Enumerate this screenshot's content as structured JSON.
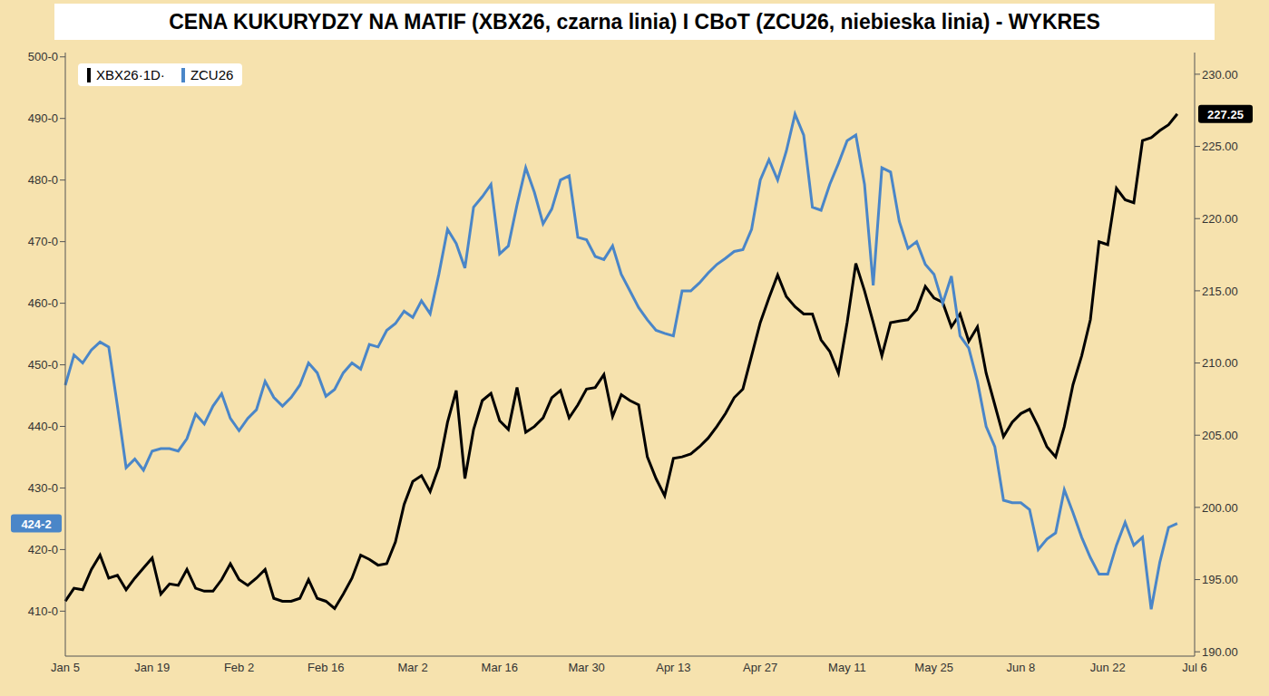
{
  "chart_data": {
    "type": "line",
    "title": "CENA KUKURYDZY NA MATIF (XBX26, czarna linia) I CBoT (ZCU26, niebieska linia) - WYKRES",
    "categories": [
      "Jan 5",
      null,
      null,
      null,
      null,
      null,
      null,
      null,
      null,
      null,
      "Jan 19",
      null,
      null,
      null,
      null,
      null,
      null,
      null,
      null,
      null,
      "Feb 2",
      null,
      null,
      null,
      null,
      null,
      null,
      null,
      null,
      null,
      "Feb 16",
      null,
      null,
      null,
      null,
      null,
      null,
      null,
      null,
      null,
      "Mar 2",
      null,
      null,
      null,
      null,
      null,
      null,
      null,
      null,
      null,
      "Mar 16",
      null,
      null,
      null,
      null,
      null,
      null,
      null,
      null,
      null,
      "Mar 30",
      null,
      null,
      null,
      null,
      null,
      null,
      null,
      null,
      null,
      "Apr 13",
      null,
      null,
      null,
      null,
      null,
      null,
      null,
      null,
      null,
      "Apr 27",
      null,
      null,
      null,
      null,
      null,
      null,
      null,
      null,
      null,
      "May 11",
      null,
      null,
      null,
      null,
      null,
      null,
      null,
      null,
      null,
      "May 25",
      null,
      null,
      null,
      null,
      null,
      null,
      null,
      null,
      null,
      "Jun 8",
      null,
      null,
      null,
      null,
      null,
      null,
      null,
      null,
      null,
      "Jun 22",
      null,
      null,
      null,
      null,
      null,
      null,
      null,
      null,
      null,
      "Jul 6"
    ],
    "series": [
      {
        "name": "XBX26·1D·",
        "color": "#000000",
        "axis": "y2",
        "values": [
          193.5,
          194.4,
          194.3,
          195.7,
          196.7,
          195.1,
          195.3,
          194.3,
          195.1,
          195.8,
          196.5,
          194.0,
          194.7,
          194.6,
          195.7,
          194.4,
          194.2,
          194.2,
          195.0,
          196.1,
          195.0,
          194.6,
          195.1,
          195.7,
          193.7,
          193.5,
          193.5,
          193.7,
          195.0,
          193.7,
          193.5,
          193.0,
          194.0,
          195.1,
          196.7,
          196.4,
          196.0,
          196.1,
          197.6,
          200.2,
          201.8,
          202.2,
          201.1,
          202.8,
          205.9,
          208.1,
          202.0,
          205.4,
          207.4,
          207.9,
          206.0,
          205.4,
          208.3,
          205.2,
          205.6,
          206.2,
          207.6,
          208.1,
          206.2,
          207.1,
          208.2,
          208.3,
          209.2,
          206.3,
          207.8,
          207.4,
          207.1,
          203.5,
          202.0,
          200.8,
          203.4,
          203.5,
          203.7,
          204.2,
          204.8,
          205.6,
          206.5,
          207.6,
          208.2,
          210.5,
          212.8,
          214.5,
          216.1,
          214.6,
          213.9,
          213.4,
          213.4,
          211.6,
          210.8,
          209.3,
          212.8,
          216.9,
          215.0,
          212.8,
          210.5,
          212.8,
          212.9,
          213.0,
          213.7,
          215.3,
          214.5,
          214.2,
          212.5,
          213.4,
          211.5,
          212.5,
          209.3,
          207.1,
          204.9,
          205.9,
          206.5,
          206.8,
          205.6,
          204.2,
          203.5,
          205.6,
          208.5,
          210.5,
          213.0,
          218.4,
          218.2,
          222.1,
          221.3,
          221.1,
          225.4,
          225.6,
          226.1,
          226.5,
          227.25,
          null,
          null
        ]
      },
      {
        "name": "ZCU26",
        "color": "#4a86c8",
        "axis": "y",
        "values": [
          446.7,
          451.6,
          450.3,
          452.4,
          453.7,
          452.9,
          443.3,
          433.3,
          434.7,
          432.9,
          436.0,
          436.4,
          436.4,
          436.0,
          438.0,
          442.0,
          440.4,
          443.3,
          445.3,
          441.3,
          439.3,
          441.3,
          442.7,
          447.3,
          444.7,
          443.3,
          444.7,
          446.7,
          450.3,
          448.7,
          444.9,
          446.0,
          448.7,
          450.3,
          449.3,
          453.3,
          452.9,
          455.6,
          456.7,
          458.7,
          457.7,
          460.4,
          458.3,
          464.7,
          472.0,
          469.7,
          465.7,
          475.6,
          477.3,
          479.3,
          468.0,
          469.3,
          476.0,
          482.0,
          478.0,
          472.9,
          475.3,
          480.0,
          480.7,
          470.7,
          470.3,
          467.6,
          467.1,
          469.3,
          464.7,
          462.0,
          459.3,
          457.3,
          455.6,
          455.1,
          454.7,
          462.0,
          462.0,
          463.3,
          464.9,
          466.3,
          467.3,
          468.4,
          468.7,
          472.0,
          480.0,
          483.3,
          480.0,
          484.7,
          490.7,
          487.3,
          475.6,
          475.1,
          479.3,
          482.7,
          486.4,
          487.3,
          479.3,
          462.9,
          482.0,
          481.3,
          473.3,
          468.9,
          470.0,
          466.3,
          464.7,
          460.0,
          464.4,
          454.7,
          452.7,
          447.3,
          440.0,
          436.7,
          428.0,
          427.6,
          427.6,
          426.5,
          420.0,
          421.7,
          422.7,
          429.7,
          426.0,
          422.0,
          418.7,
          416.0,
          416.0,
          420.7,
          424.4,
          420.7,
          422.0,
          410.3,
          418.0,
          423.6,
          424.25,
          null,
          null
        ]
      }
    ],
    "ylim": [
      402.7,
      500.7
    ],
    "yticks": [
      {
        "value": 410,
        "label": "410-0"
      },
      {
        "value": 420,
        "label": "420-0"
      },
      {
        "value": 430,
        "label": "430-0"
      },
      {
        "value": 440,
        "label": "440-0"
      },
      {
        "value": 450,
        "label": "450-0"
      },
      {
        "value": 460,
        "label": "460-0"
      },
      {
        "value": 470,
        "label": "470-0"
      },
      {
        "value": 480,
        "label": "480-0"
      },
      {
        "value": 490,
        "label": "490-0"
      },
      {
        "value": 500,
        "label": "500-0"
      }
    ],
    "y2lim": [
      189.7,
      231.5
    ],
    "y2ticks": [
      {
        "value": 190,
        "label": "190.00"
      },
      {
        "value": 195,
        "label": "195.00"
      },
      {
        "value": 200,
        "label": "200.00"
      },
      {
        "value": 205,
        "label": "205.00"
      },
      {
        "value": 210,
        "label": "210.00"
      },
      {
        "value": 215,
        "label": "215.00"
      },
      {
        "value": 220,
        "label": "220.00"
      },
      {
        "value": 225,
        "label": "225.00"
      },
      {
        "value": 230,
        "label": "230.00"
      }
    ],
    "annotations": [
      {
        "text": "424-2",
        "value": 424.25,
        "axis": "y",
        "color": "#4a86c8"
      },
      {
        "text": "227.25",
        "value": 227.25,
        "axis": "y2",
        "color": "#000000"
      }
    ],
    "grid": false,
    "legend": "upper left"
  }
}
